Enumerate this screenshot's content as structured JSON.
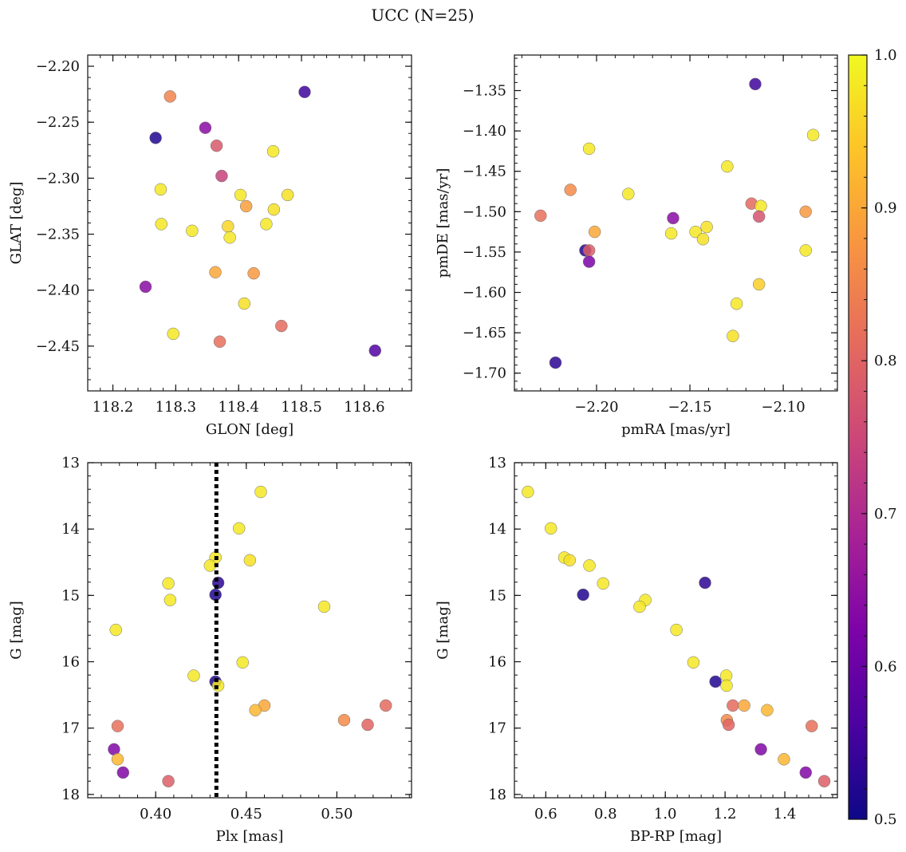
{
  "figure": {
    "title": "UCC (N=25)"
  },
  "colorbar": {
    "min": 0.5,
    "max": 1.0,
    "ticks": [
      0.5,
      0.6,
      0.7,
      0.8,
      0.9,
      1.0
    ],
    "tick_labels": [
      "0.5",
      "0.6",
      "0.7",
      "0.8",
      "0.9",
      "1.0"
    ],
    "colormap": "plasma"
  },
  "chart_data": [
    {
      "type": "scatter",
      "panel": "top-left",
      "xlabel": "GLON [deg]",
      "ylabel": "GLAT [deg]",
      "xlim": [
        118.16,
        118.675
      ],
      "ylim": [
        -2.49,
        -2.19
      ],
      "y_inverted": false,
      "xticks": [
        118.2,
        118.3,
        118.4,
        118.5,
        118.6
      ],
      "xtick_labels": [
        "118.2",
        "118.3",
        "118.4",
        "118.5",
        "118.6"
      ],
      "yticks": [
        -2.2,
        -2.25,
        -2.3,
        -2.35,
        -2.4,
        -2.45
      ],
      "ytick_labels": [
        "−2.20",
        "−2.25",
        "−2.30",
        "−2.35",
        "−2.40",
        "−2.45"
      ],
      "points": [
        {
          "x": 118.291,
          "y": -2.227,
          "c": 0.85
        },
        {
          "x": 118.505,
          "y": -2.223,
          "c": 0.55
        },
        {
          "x": 118.268,
          "y": -2.264,
          "c": 0.52
        },
        {
          "x": 118.347,
          "y": -2.255,
          "c": 0.64
        },
        {
          "x": 118.365,
          "y": -2.271,
          "c": 0.78
        },
        {
          "x": 118.455,
          "y": -2.276,
          "c": 0.98
        },
        {
          "x": 118.373,
          "y": -2.298,
          "c": 0.74
        },
        {
          "x": 118.276,
          "y": -2.31,
          "c": 0.98
        },
        {
          "x": 118.403,
          "y": -2.315,
          "c": 0.98
        },
        {
          "x": 118.478,
          "y": -2.315,
          "c": 0.97
        },
        {
          "x": 118.412,
          "y": -2.325,
          "c": 0.89
        },
        {
          "x": 118.456,
          "y": -2.328,
          "c": 0.97
        },
        {
          "x": 118.277,
          "y": -2.341,
          "c": 0.98
        },
        {
          "x": 118.444,
          "y": -2.341,
          "c": 0.98
        },
        {
          "x": 118.383,
          "y": -2.343,
          "c": 0.96
        },
        {
          "x": 118.326,
          "y": -2.347,
          "c": 0.98
        },
        {
          "x": 118.386,
          "y": -2.353,
          "c": 0.98
        },
        {
          "x": 118.363,
          "y": -2.384,
          "c": 0.9
        },
        {
          "x": 118.424,
          "y": -2.385,
          "c": 0.88
        },
        {
          "x": 118.252,
          "y": -2.397,
          "c": 0.64
        },
        {
          "x": 118.409,
          "y": -2.412,
          "c": 0.97
        },
        {
          "x": 118.468,
          "y": -2.432,
          "c": 0.81
        },
        {
          "x": 118.296,
          "y": -2.439,
          "c": 0.98
        },
        {
          "x": 118.37,
          "y": -2.446,
          "c": 0.82
        },
        {
          "x": 118.617,
          "y": -2.454,
          "c": 0.57
        }
      ]
    },
    {
      "type": "scatter",
      "panel": "top-right",
      "xlabel": "pmRA [mas/yr]",
      "ylabel": "pmDE [mas/yr]",
      "xlim": [
        -2.244,
        -2.071
      ],
      "ylim": [
        -1.722,
        -1.306
      ],
      "y_inverted": false,
      "xticks": [
        -2.2,
        -2.15,
        -2.1
      ],
      "xtick_labels": [
        "−2.20",
        "−2.15",
        "−2.10"
      ],
      "yticks": [
        -1.35,
        -1.4,
        -1.45,
        -1.5,
        -1.55,
        -1.6,
        -1.65,
        -1.7
      ],
      "ytick_labels": [
        "−1.35",
        "−1.40",
        "−1.45",
        "−1.50",
        "−1.55",
        "−1.60",
        "−1.65",
        "−1.70"
      ],
      "points": [
        {
          "x": -2.115,
          "y": -1.342,
          "c": 0.55
        },
        {
          "x": -2.084,
          "y": -1.405,
          "c": 0.98
        },
        {
          "x": -2.204,
          "y": -1.422,
          "c": 0.98
        },
        {
          "x": -2.13,
          "y": -1.444,
          "c": 0.98
        },
        {
          "x": -2.214,
          "y": -1.473,
          "c": 0.86
        },
        {
          "x": -2.183,
          "y": -1.478,
          "c": 0.98
        },
        {
          "x": -2.117,
          "y": -1.49,
          "c": 0.81
        },
        {
          "x": -2.112,
          "y": -1.493,
          "c": 0.98
        },
        {
          "x": -2.23,
          "y": -1.505,
          "c": 0.82
        },
        {
          "x": -2.088,
          "y": -1.5,
          "c": 0.88
        },
        {
          "x": -2.113,
          "y": -1.506,
          "c": 0.77
        },
        {
          "x": -2.159,
          "y": -1.508,
          "c": 0.64
        },
        {
          "x": -2.141,
          "y": -1.519,
          "c": 0.97
        },
        {
          "x": -2.201,
          "y": -1.525,
          "c": 0.9
        },
        {
          "x": -2.147,
          "y": -1.525,
          "c": 0.98
        },
        {
          "x": -2.16,
          "y": -1.527,
          "c": 0.98
        },
        {
          "x": -2.143,
          "y": -1.534,
          "c": 0.97
        },
        {
          "x": -2.206,
          "y": -1.548,
          "c": 0.52
        },
        {
          "x": -2.204,
          "y": -1.548,
          "c": 0.79
        },
        {
          "x": -2.088,
          "y": -1.548,
          "c": 0.98
        },
        {
          "x": -2.204,
          "y": -1.562,
          "c": 0.62
        },
        {
          "x": -2.113,
          "y": -1.59,
          "c": 0.95
        },
        {
          "x": -2.125,
          "y": -1.614,
          "c": 0.98
        },
        {
          "x": -2.127,
          "y": -1.654,
          "c": 0.97
        },
        {
          "x": -2.222,
          "y": -1.687,
          "c": 0.53
        }
      ]
    },
    {
      "type": "scatter",
      "panel": "bottom-left",
      "xlabel": "Plx [mas]",
      "ylabel": "G [mag]",
      "xlim": [
        0.3625,
        0.5412
      ],
      "ylim": [
        13.0,
        18.05
      ],
      "y_inverted": true,
      "xticks": [
        0.4,
        0.45,
        0.5
      ],
      "xtick_labels": [
        "0.40",
        "0.45",
        "0.50"
      ],
      "yticks": [
        13,
        14,
        15,
        16,
        17,
        18
      ],
      "ytick_labels": [
        "13",
        "14",
        "15",
        "16",
        "17",
        "18"
      ],
      "vline": {
        "x": 0.4335,
        "style": "dotted"
      },
      "points": [
        {
          "x": 0.458,
          "y": 13.44,
          "c": 0.98
        },
        {
          "x": 0.446,
          "y": 13.99,
          "c": 0.98
        },
        {
          "x": 0.433,
          "y": 14.43,
          "c": 0.98
        },
        {
          "x": 0.452,
          "y": 14.47,
          "c": 0.97
        },
        {
          "x": 0.43,
          "y": 14.55,
          "c": 0.98
        },
        {
          "x": 0.407,
          "y": 14.82,
          "c": 0.98
        },
        {
          "x": 0.4345,
          "y": 14.81,
          "c": 0.53
        },
        {
          "x": 0.408,
          "y": 15.07,
          "c": 0.98
        },
        {
          "x": 0.433,
          "y": 14.99,
          "c": 0.52
        },
        {
          "x": 0.493,
          "y": 15.17,
          "c": 0.98
        },
        {
          "x": 0.378,
          "y": 15.52,
          "c": 0.98
        },
        {
          "x": 0.448,
          "y": 16.01,
          "c": 0.98
        },
        {
          "x": 0.421,
          "y": 16.21,
          "c": 0.98
        },
        {
          "x": 0.433,
          "y": 16.3,
          "c": 0.52
        },
        {
          "x": 0.4345,
          "y": 16.36,
          "c": 0.98
        },
        {
          "x": 0.46,
          "y": 16.66,
          "c": 0.9
        },
        {
          "x": 0.455,
          "y": 16.73,
          "c": 0.92
        },
        {
          "x": 0.527,
          "y": 16.66,
          "c": 0.81
        },
        {
          "x": 0.504,
          "y": 16.88,
          "c": 0.86
        },
        {
          "x": 0.517,
          "y": 16.95,
          "c": 0.8
        },
        {
          "x": 0.379,
          "y": 16.97,
          "c": 0.82
        },
        {
          "x": 0.377,
          "y": 17.32,
          "c": 0.63
        },
        {
          "x": 0.379,
          "y": 17.47,
          "c": 0.92
        },
        {
          "x": 0.382,
          "y": 17.67,
          "c": 0.63
        },
        {
          "x": 0.407,
          "y": 17.8,
          "c": 0.79
        }
      ]
    },
    {
      "type": "scatter",
      "panel": "bottom-right",
      "xlabel": "BP-RP [mag]",
      "ylabel": "G [mag]",
      "xlim": [
        0.495,
        1.576
      ],
      "ylim": [
        13.0,
        18.05
      ],
      "y_inverted": true,
      "xticks": [
        0.6,
        0.8,
        1.0,
        1.2,
        1.4
      ],
      "xtick_labels": [
        "0.6",
        "0.8",
        "1.0",
        "1.2",
        "1.4"
      ],
      "yticks": [
        13,
        14,
        15,
        16,
        17,
        18
      ],
      "ytick_labels": [
        "13",
        "14",
        "15",
        "16",
        "17",
        "18"
      ],
      "points": [
        {
          "x": 0.54,
          "y": 13.44,
          "c": 0.98
        },
        {
          "x": 0.617,
          "y": 13.99,
          "c": 0.98
        },
        {
          "x": 0.662,
          "y": 14.43,
          "c": 0.98
        },
        {
          "x": 0.68,
          "y": 14.47,
          "c": 0.97
        },
        {
          "x": 0.746,
          "y": 14.55,
          "c": 0.98
        },
        {
          "x": 0.792,
          "y": 14.82,
          "c": 0.98
        },
        {
          "x": 1.133,
          "y": 14.81,
          "c": 0.53
        },
        {
          "x": 0.725,
          "y": 14.99,
          "c": 0.52
        },
        {
          "x": 0.933,
          "y": 15.07,
          "c": 0.98
        },
        {
          "x": 0.914,
          "y": 15.17,
          "c": 0.98
        },
        {
          "x": 1.037,
          "y": 15.52,
          "c": 0.98
        },
        {
          "x": 1.094,
          "y": 16.01,
          "c": 0.98
        },
        {
          "x": 1.204,
          "y": 16.21,
          "c": 0.98
        },
        {
          "x": 1.168,
          "y": 16.3,
          "c": 0.52
        },
        {
          "x": 1.205,
          "y": 16.36,
          "c": 0.98
        },
        {
          "x": 1.226,
          "y": 16.66,
          "c": 0.81
        },
        {
          "x": 1.264,
          "y": 16.66,
          "c": 0.9
        },
        {
          "x": 1.341,
          "y": 16.73,
          "c": 0.92
        },
        {
          "x": 1.206,
          "y": 16.88,
          "c": 0.86
        },
        {
          "x": 1.212,
          "y": 16.95,
          "c": 0.8
        },
        {
          "x": 1.49,
          "y": 16.97,
          "c": 0.82
        },
        {
          "x": 1.32,
          "y": 17.32,
          "c": 0.63
        },
        {
          "x": 1.397,
          "y": 17.47,
          "c": 0.92
        },
        {
          "x": 1.47,
          "y": 17.67,
          "c": 0.63
        },
        {
          "x": 1.532,
          "y": 17.8,
          "c": 0.79
        }
      ]
    }
  ]
}
